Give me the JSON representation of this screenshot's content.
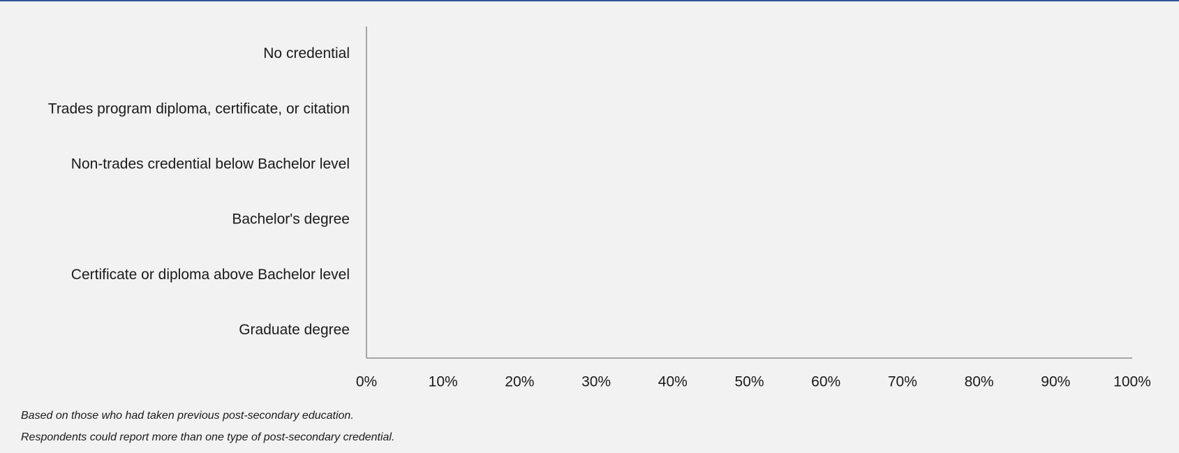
{
  "chart_data": {
    "type": "bar",
    "orientation": "horizontal",
    "categories": [
      "No credential",
      "Trades program diploma, certificate, or citation",
      "Non-trades credential below Bachelor level",
      "Bachelor's degree",
      "Certificate or diploma above Bachelor level",
      "Graduate degree"
    ],
    "xlim": [
      0,
      100
    ],
    "xticks": [
      {
        "value": 0,
        "label": "0%"
      },
      {
        "value": 10,
        "label": "10%"
      },
      {
        "value": 20,
        "label": "20%"
      },
      {
        "value": 30,
        "label": "30%"
      },
      {
        "value": 40,
        "label": "40%"
      },
      {
        "value": 50,
        "label": "50%"
      },
      {
        "value": 60,
        "label": "60%"
      },
      {
        "value": 70,
        "label": "70%"
      },
      {
        "value": 80,
        "label": "80%"
      },
      {
        "value": 90,
        "label": "90%"
      },
      {
        "value": 100,
        "label": "100%"
      }
    ],
    "notes": [
      "Based on those who had taken previous post-secondary education.",
      "Respondents could report more than one type of post-secondary credential."
    ]
  }
}
